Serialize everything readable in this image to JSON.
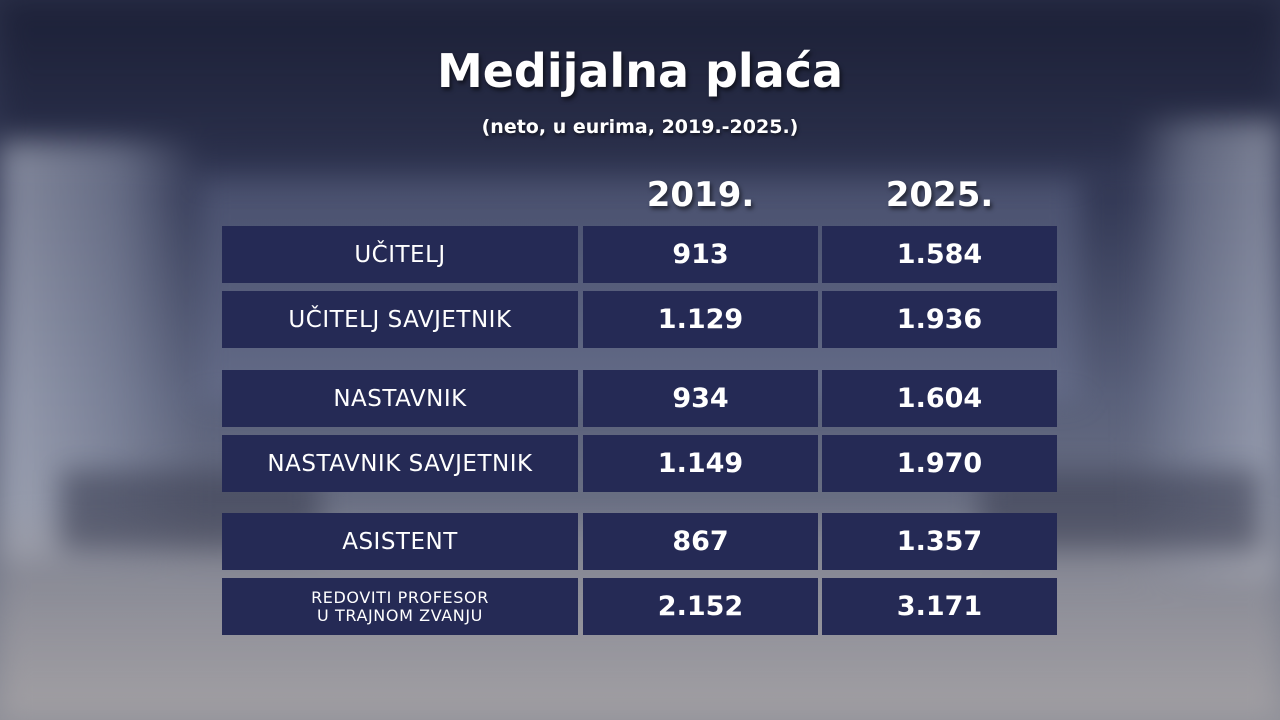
{
  "chart_data": {
    "type": "table",
    "title": "Medijalna plaća",
    "subtitle": "(neto, u eurima, 2019.-2025.)",
    "columns": [
      "2019.",
      "2025."
    ],
    "rows": [
      {
        "label": "UČITELJ",
        "values": [
          "913",
          "1.584"
        ]
      },
      {
        "label": "UČITELJ SAVJETNIK",
        "values": [
          "1.129",
          "1.936"
        ]
      },
      {
        "label": "NASTAVNIK",
        "values": [
          "934",
          "1.604"
        ]
      },
      {
        "label": "NASTAVNIK SAVJETNIK",
        "values": [
          "1.149",
          "1.970"
        ]
      },
      {
        "label": "ASISTENT",
        "values": [
          "867",
          "1.357"
        ]
      },
      {
        "label_lines": [
          "REDOVITI PROFESOR",
          "U TRAJNOM ZVANJU"
        ],
        "values": [
          "2.152",
          "3.171"
        ]
      }
    ],
    "colors": {
      "cell_background": "#252a55",
      "text": "#ffffff"
    }
  }
}
